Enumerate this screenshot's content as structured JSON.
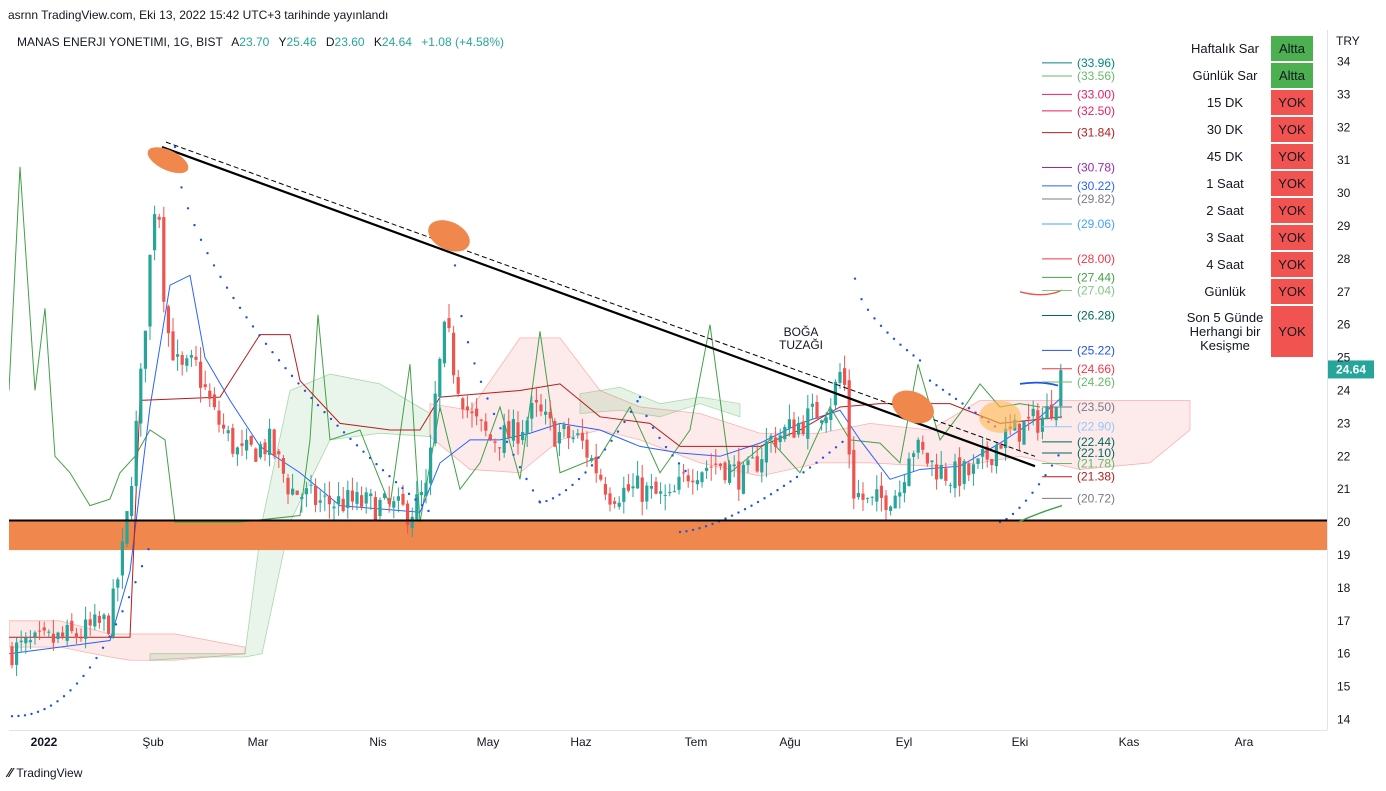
{
  "published": "asrnn TradingView.com, Eki 13, 2022 15:42 UTC+3 tarihinde yayınlandı",
  "header": {
    "symbol": "MANAS ENERJI YONETIMI, 1G, BIST",
    "open_label": "A",
    "open": "23.70",
    "high_label": "Y",
    "high": "25.46",
    "low_label": "D",
    "low": "23.60",
    "close_label": "K",
    "close": "24.64",
    "change": "+1.08 (+4.58%)"
  },
  "footer": {
    "brand": "TradingView",
    "logo_icon": "tradingview-logo-icon"
  },
  "colors": {
    "up": "#26a69a",
    "down": "#ef5350",
    "alert": "#f05350",
    "ok": "#4caf50",
    "orange": "#f0884d",
    "trend": "#000000"
  },
  "signal_table": [
    {
      "label": "Haftalık Sar",
      "value": "Altta",
      "status": "ok"
    },
    {
      "label": "Günlük Sar",
      "value": "Altta",
      "status": "ok"
    },
    {
      "label": "15 DK",
      "value": "YOK",
      "status": "alert"
    },
    {
      "label": "30 DK",
      "value": "YOK",
      "status": "alert"
    },
    {
      "label": "45 DK",
      "value": "YOK",
      "status": "alert"
    },
    {
      "label": "1 Saat",
      "value": "YOK",
      "status": "alert"
    },
    {
      "label": "2 Saat",
      "value": "YOK",
      "status": "alert"
    },
    {
      "label": "3 Saat",
      "value": "YOK",
      "status": "alert"
    },
    {
      "label": "4 Saat",
      "value": "YOK",
      "status": "alert"
    },
    {
      "label": "Günlük",
      "value": "YOK",
      "status": "alert"
    },
    {
      "label": "Son 5 Günde Herhangi bir Kesişme",
      "value": "YOK",
      "status": "alert"
    }
  ],
  "chart_data": {
    "type": "candlestick",
    "currency": "TRY",
    "y_ticks": [
      14,
      15,
      16,
      17,
      18,
      19,
      20,
      21,
      22,
      23,
      24,
      25,
      26,
      27,
      28,
      29,
      30,
      31,
      32,
      33,
      34
    ],
    "ylim": [
      13.6,
      34.45
    ],
    "x_ticks": [
      "2022",
      "Şub",
      "Mar",
      "Nis",
      "May",
      "Haz",
      "Tem",
      "Ağu",
      "Eyl",
      "Eki",
      "Kas",
      "Ara"
    ],
    "last_price": "24.64",
    "support_line": 20.05,
    "support_zone": [
      19.15,
      20.05
    ],
    "trendline": {
      "from": [
        "Şub",
        31.4
      ],
      "to": [
        "Eki",
        21.7
      ]
    },
    "annotation": "BOĞA TUZAĞI",
    "levels": [
      {
        "value": 33.96,
        "label": "(33.96)",
        "color": "#00897b"
      },
      {
        "value": 33.56,
        "label": "(33.56)",
        "color": "#66bb6a"
      },
      {
        "value": 33.0,
        "label": "(33.00)",
        "color": "#e91e63"
      },
      {
        "value": 32.5,
        "label": "(32.50)",
        "color": "#e91e63"
      },
      {
        "value": 31.84,
        "label": "(31.84)",
        "color": "#b71c1c"
      },
      {
        "value": 30.78,
        "label": "(30.78)",
        "color": "#9c27b0"
      },
      {
        "value": 30.22,
        "label": "(30.22)",
        "color": "#2962ff"
      },
      {
        "value": 29.82,
        "label": "(29.82)",
        "color": "#787b86"
      },
      {
        "value": 29.06,
        "label": "(29.06)",
        "color": "#42a5f5"
      },
      {
        "value": 28.0,
        "label": "(28.00)",
        "color": "#f23645"
      },
      {
        "value": 27.44,
        "label": "(27.44)",
        "color": "#43a047"
      },
      {
        "value": 27.04,
        "label": "(27.04)",
        "color": "#81c784"
      },
      {
        "value": 26.28,
        "label": "(26.28)",
        "color": "#00695c"
      },
      {
        "value": 25.22,
        "label": "(25.22)",
        "color": "#1e53e5"
      },
      {
        "value": 24.66,
        "label": "(24.66)",
        "color": "#f23645"
      },
      {
        "value": 24.26,
        "label": "(24.26)",
        "color": "#66bb6a"
      },
      {
        "value": 23.5,
        "label": "(23.50)",
        "color": "#787b86"
      },
      {
        "value": 22.9,
        "label": "(22.90)",
        "color": "#90caf9"
      },
      {
        "value": 22.44,
        "label": "(22.44)",
        "color": "#00695c"
      },
      {
        "value": 22.1,
        "label": "(22.10)",
        "color": "#00695c"
      },
      {
        "value": 21.78,
        "label": "(21.78)",
        "color": "#66bb6a"
      },
      {
        "value": 21.38,
        "label": "(21.38)",
        "color": "#b71c1c"
      },
      {
        "value": 20.72,
        "label": "(20.72)",
        "color": "#787b86"
      }
    ]
  }
}
